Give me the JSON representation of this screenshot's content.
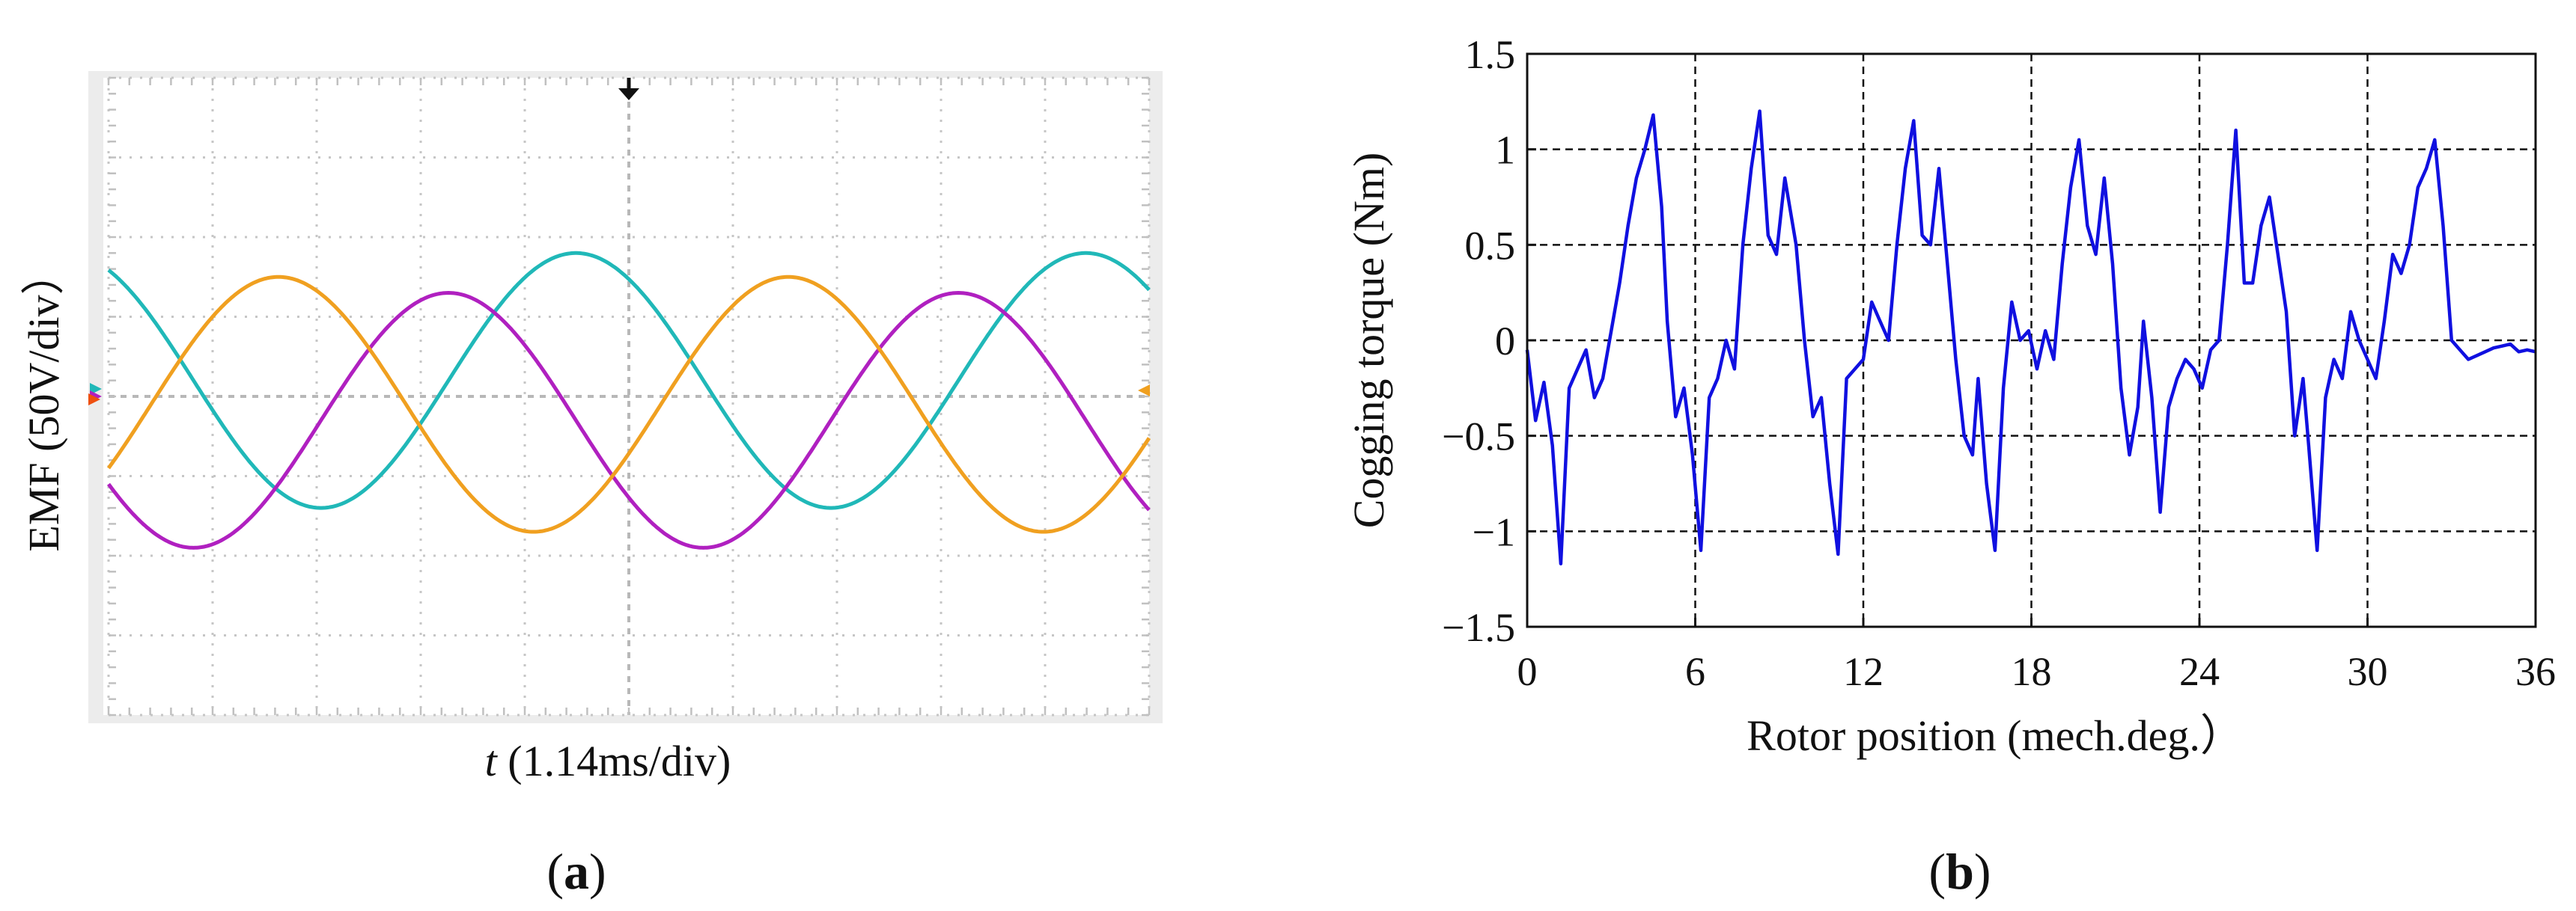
{
  "panel_a": {
    "ylabel": "EMF (50V/div）",
    "xlabel_var": "t",
    "xlabel_rest": " (1.14ms/div)",
    "caption_open": "(",
    "caption_letter": "a",
    "caption_close": ")",
    "colors": {
      "phase1": "#20b8b8",
      "phase2": "#b020c0",
      "phase3": "#f0a020"
    }
  },
  "panel_b": {
    "caption_open": "(",
    "caption_letter": "b",
    "caption_close": ")",
    "color": "#1010e0"
  },
  "chart_data": [
    {
      "type": "line",
      "grid": true,
      "divisions": {
        "x": 10,
        "y": 8
      },
      "x_units_per_div": "1.14ms",
      "y_units_per_div": "50V",
      "x_range_div": [
        0,
        10
      ],
      "y_range_div": [
        -4,
        4
      ],
      "series": [
        {
          "amplitude_div": 1.6,
          "offset_div": 0.2,
          "phase_deg": 120,
          "period_div": 4.9
        },
        {
          "amplitude_div": 1.6,
          "offset_div": -0.3,
          "phase_deg": 210,
          "period_div": 4.9
        },
        {
          "amplitude_div": 1.6,
          "offset_div": -0.1,
          "phase_deg": 330,
          "period_div": 4.9
        }
      ]
    },
    {
      "type": "line",
      "xlabel": "Rotor position (mech.deg.）",
      "ylabel": "Cogging torque (Nm)",
      "xlim": [
        0,
        36
      ],
      "ylim": [
        -1.5,
        1.5
      ],
      "xticks": [
        0,
        6,
        12,
        18,
        24,
        30,
        36
      ],
      "yticks": [
        -1.5,
        -1,
        -0.5,
        0,
        0.5,
        1,
        1.5
      ],
      "ytick_labels": [
        "−1.5",
        "−1",
        "−0.5",
        "0",
        "0.5",
        "1",
        "1.5"
      ],
      "grid": true,
      "series": [
        {
          "x": [
            0,
            0.3,
            0.6,
            0.9,
            1.2,
            1.5,
            1.8,
            2.1,
            2.4,
            2.7,
            3.0,
            3.3,
            3.6,
            3.9,
            4.2,
            4.5,
            4.8,
            5.0,
            5.3,
            5.6,
            5.9,
            6.2,
            6.5,
            6.8,
            7.1,
            7.4,
            7.7,
            8.0,
            8.3,
            8.6,
            8.9,
            9.2,
            9.6,
            9.9,
            10.2,
            10.5,
            10.8,
            11.1,
            11.4,
            11.7,
            12.0,
            12.3,
            12.6,
            12.9,
            13.2,
            13.5,
            13.8,
            14.1,
            14.4,
            14.7,
            15.0,
            15.3,
            15.6,
            15.9,
            16.1,
            16.4,
            16.7,
            17.0,
            17.3,
            17.6,
            17.9,
            18.2,
            18.5,
            18.8,
            19.1,
            19.4,
            19.7,
            20.0,
            20.3,
            20.6,
            20.9,
            21.2,
            21.5,
            21.8,
            22.0,
            22.3,
            22.6,
            22.9,
            23.2,
            23.5,
            23.8,
            24.1,
            24.4,
            24.7,
            25.0,
            25.3,
            25.6,
            25.9,
            26.2,
            26.5,
            26.8,
            27.1,
            27.4,
            27.7,
            27.9,
            28.2,
            28.5,
            28.8,
            29.1,
            29.4,
            29.7,
            30.0,
            30.3,
            30.6,
            30.9,
            31.2,
            31.5,
            31.8,
            32.1,
            32.4,
            32.7,
            33.0,
            33.3,
            33.6,
            33.9,
            34.2,
            34.5,
            34.8,
            35.1,
            35.4,
            35.7,
            36.0
          ],
          "y": [
            -0.05,
            -0.42,
            -0.22,
            -0.55,
            -1.17,
            -0.25,
            -0.15,
            -0.05,
            -0.3,
            -0.2,
            0.05,
            0.3,
            0.6,
            0.85,
            1.0,
            1.18,
            0.7,
            0.1,
            -0.4,
            -0.25,
            -0.6,
            -1.1,
            -0.3,
            -0.2,
            0.0,
            -0.15,
            0.5,
            0.9,
            1.2,
            0.55,
            0.45,
            0.85,
            0.5,
            0.0,
            -0.4,
            -0.3,
            -0.75,
            -1.12,
            -0.2,
            -0.15,
            -0.1,
            0.2,
            0.1,
            0.0,
            0.5,
            0.9,
            1.15,
            0.55,
            0.5,
            0.9,
            0.4,
            -0.1,
            -0.5,
            -0.6,
            -0.2,
            -0.75,
            -1.1,
            -0.25,
            0.2,
            0.0,
            0.05,
            -0.15,
            0.05,
            -0.1,
            0.4,
            0.8,
            1.05,
            0.6,
            0.45,
            0.85,
            0.4,
            -0.25,
            -0.6,
            -0.35,
            0.1,
            -0.3,
            -0.9,
            -0.35,
            -0.2,
            -0.1,
            -0.15,
            -0.25,
            -0.05,
            0.0,
            0.5,
            1.1,
            0.3,
            0.3,
            0.6,
            0.75,
            0.45,
            0.15,
            -0.5,
            -0.2,
            -0.55,
            -1.1,
            -0.3,
            -0.1,
            -0.2,
            0.15,
            0.0,
            -0.1,
            -0.2,
            0.1,
            0.45,
            0.35,
            0.5,
            0.8,
            0.9,
            1.05,
            0.6,
            0.0,
            -0.05,
            -0.1,
            -0.08,
            -0.06,
            -0.04,
            -0.03,
            -0.02,
            -0.06,
            -0.05,
            -0.06
          ]
        }
      ]
    }
  ]
}
